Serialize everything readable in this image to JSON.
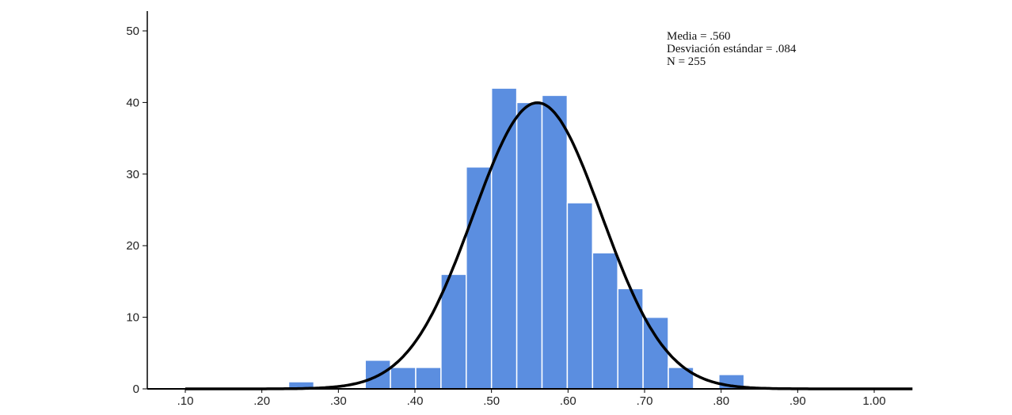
{
  "chart_data": {
    "type": "bar",
    "subtype": "histogram",
    "bin_starts": [
      0.235,
      0.335,
      0.368,
      0.401,
      0.434,
      0.467,
      0.5,
      0.533,
      0.566,
      0.599,
      0.632,
      0.665,
      0.698,
      0.731,
      0.797
    ],
    "bin_width": 0.033,
    "values": [
      1,
      4,
      3,
      3,
      16,
      31,
      42,
      40,
      41,
      26,
      19,
      14,
      10,
      3,
      2
    ],
    "bar_color": "#5b8ee0",
    "normal_curve": {
      "mean": 0.56,
      "sd": 0.084,
      "n": 255,
      "color": "#000000"
    },
    "xlim": [
      0.05,
      1.05
    ],
    "ylim": [
      0,
      52
    ],
    "x_ticks": [
      ".10",
      ".20",
      ".30",
      ".40",
      ".50",
      ".60",
      ".70",
      ".80",
      ".90",
      "1.00"
    ],
    "y_ticks": [
      "0",
      "10",
      "20",
      "30",
      "40",
      "50"
    ],
    "annotation_lines": [
      "Media = .560",
      "Desviación estándar = .084",
      "N = 255"
    ],
    "legend_position": "top-right",
    "grid": false
  }
}
